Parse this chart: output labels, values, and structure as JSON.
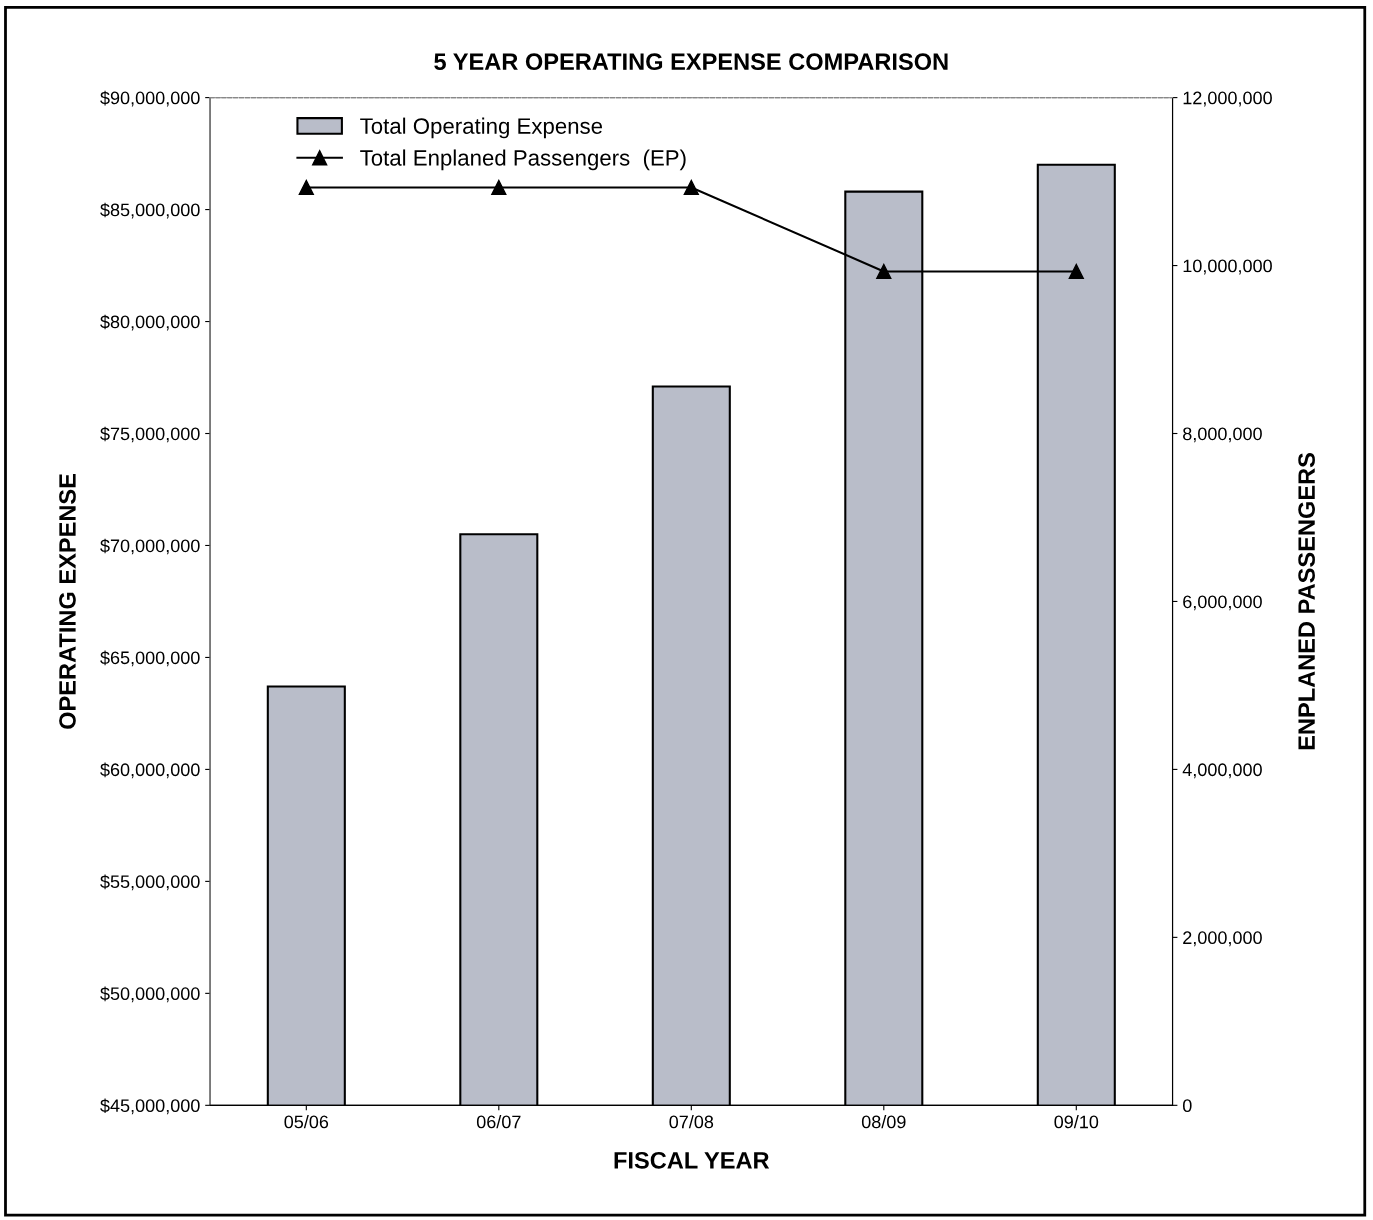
{
  "chart_data": {
    "type": "bar",
    "title": "5 YEAR OPERATING EXPENSE COMPARISON",
    "xlabel": "FISCAL YEAR",
    "ylabel": "OPERATING EXPENSE",
    "y2label": "ENPLANED PASSENGERS",
    "categories": [
      "05/06",
      "06/07",
      "07/08",
      "08/09",
      "09/10"
    ],
    "series": [
      {
        "name": "Total Operating Expense",
        "color": "#b9bdc9",
        "values": [
          63700000,
          70500000,
          77100000,
          85800000,
          87000000
        ]
      },
      {
        "name": "Total Enplaned Passengers  (EP)",
        "type": "line",
        "axis": "y2",
        "color": "#000000",
        "marker": "triangle",
        "values": [
          10930000,
          10930000,
          10930000,
          9930000,
          9930000
        ]
      }
    ],
    "ylim": [
      45000000,
      90000000
    ],
    "yticks": [
      {
        "value": 45000000,
        "label": "$45,000,000"
      },
      {
        "value": 50000000,
        "label": "$50,000,000"
      },
      {
        "value": 55000000,
        "label": "$55,000,000"
      },
      {
        "value": 60000000,
        "label": "$60,000,000"
      },
      {
        "value": 65000000,
        "label": "$65,000,000"
      },
      {
        "value": 70000000,
        "label": "$70,000,000"
      },
      {
        "value": 75000000,
        "label": "$75,000,000"
      },
      {
        "value": 80000000,
        "label": "$80,000,000"
      },
      {
        "value": 85000000,
        "label": "$85,000,000"
      },
      {
        "value": 90000000,
        "label": "$90,000,000"
      }
    ],
    "y2lim": [
      0,
      12000000
    ],
    "y2ticks": [
      0,
      {
        "value": 2000000,
        "label": "2,000,000"
      },
      {
        "value": 4000000,
        "label": "4,000,000"
      },
      {
        "value": 6000000,
        "label": "6,000,000"
      },
      {
        "value": 8000000,
        "label": "8,000,000"
      },
      {
        "value": 10000000,
        "label": "10,000,000"
      },
      {
        "value": 12000000,
        "label": "12,000,000"
      }
    ],
    "grid": false,
    "legend": "top left"
  }
}
